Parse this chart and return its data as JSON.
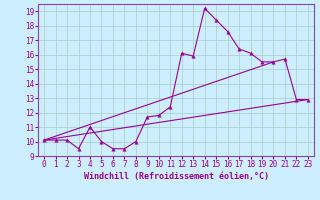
{
  "xlabel": "Windchill (Refroidissement éolien,°C)",
  "background_color": "#cceeff",
  "grid_color": "#aacccc",
  "line_color": "#990099",
  "spine_color": "#8844aa",
  "xlim": [
    -0.5,
    23.5
  ],
  "ylim": [
    9,
    19.5
  ],
  "yticks": [
    9,
    10,
    11,
    12,
    13,
    14,
    15,
    16,
    17,
    18,
    19
  ],
  "xticks": [
    0,
    1,
    2,
    3,
    4,
    5,
    6,
    7,
    8,
    9,
    10,
    11,
    12,
    13,
    14,
    15,
    16,
    17,
    18,
    19,
    20,
    21,
    22,
    23
  ],
  "series1_x": [
    0,
    1,
    2,
    3,
    4,
    5,
    6,
    7,
    8,
    9,
    10,
    11,
    12,
    13,
    14,
    15,
    16,
    17,
    18,
    19,
    20,
    21,
    22,
    23
  ],
  "series1_y": [
    10.1,
    10.1,
    10.1,
    9.5,
    11.0,
    10.0,
    9.5,
    9.5,
    10.0,
    11.7,
    11.8,
    12.4,
    16.1,
    15.9,
    19.2,
    18.4,
    17.6,
    16.4,
    16.1,
    15.5,
    15.5,
    15.7,
    12.9,
    12.9
  ],
  "series2_x": [
    0,
    23
  ],
  "series2_y": [
    10.1,
    12.9
  ],
  "series3_x": [
    0,
    20
  ],
  "series3_y": [
    10.1,
    15.5
  ],
  "tick_fontsize": 5.5,
  "xlabel_fontsize": 6.0
}
